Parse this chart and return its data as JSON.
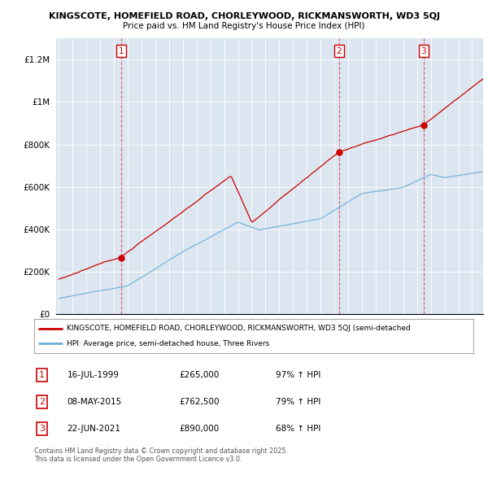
{
  "title_line1": "KINGSCOTE, HOMEFIELD ROAD, CHORLEYWOOD, RICKMANSWORTH, WD3 5QJ",
  "title_line2": "Price paid vs. HM Land Registry's House Price Index (HPI)",
  "bg_color": "#dce6f1",
  "red_line_color": "#cc0000",
  "blue_line_color": "#6baed6",
  "ylim": [
    0,
    1300000
  ],
  "yticks": [
    0,
    200000,
    400000,
    600000,
    800000,
    1000000,
    1200000
  ],
  "ytick_labels": [
    "£0",
    "£200K",
    "£400K",
    "£600K",
    "£800K",
    "£1M",
    "£1.2M"
  ],
  "sale_times": [
    1999.54,
    2015.35,
    2021.47
  ],
  "sale_prices": [
    265000,
    762500,
    890000
  ],
  "sale_labels": [
    "1",
    "2",
    "3"
  ],
  "legend_red": "KINGSCOTE, HOMEFIELD ROAD, CHORLEYWOOD, RICKMANSWORTH, WD3 5QJ (semi-detached",
  "legend_blue": "HPI: Average price, semi-detached house, Three Rivers",
  "footnote": "Contains HM Land Registry data © Crown copyright and database right 2025.\nThis data is licensed under the Open Government Licence v3.0.",
  "table_rows": [
    {
      "num": "1",
      "date": "16-JUL-1999",
      "price": "£265,000",
      "change": "97% ↑ HPI"
    },
    {
      "num": "2",
      "date": "08-MAY-2015",
      "price": "£762,500",
      "change": "79% ↑ HPI"
    },
    {
      "num": "3",
      "date": "22-JUN-2021",
      "price": "£890,000",
      "change": "68% ↑ HPI"
    }
  ]
}
